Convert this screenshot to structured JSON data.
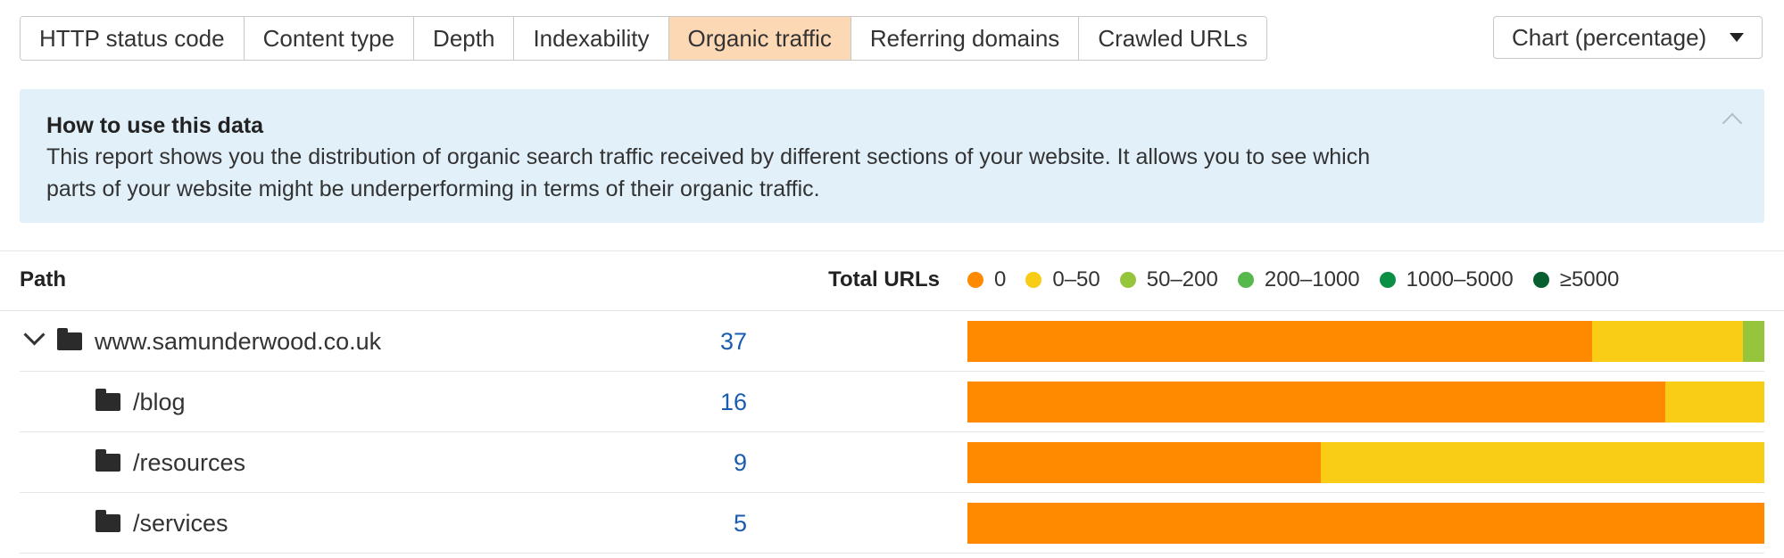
{
  "tabs": [
    {
      "label": "HTTP status code",
      "active": false
    },
    {
      "label": "Content type",
      "active": false
    },
    {
      "label": "Depth",
      "active": false
    },
    {
      "label": "Indexability",
      "active": false
    },
    {
      "label": "Organic traffic",
      "active": true
    },
    {
      "label": "Referring domains",
      "active": false
    },
    {
      "label": "Crawled URLs",
      "active": false
    }
  ],
  "view_select": {
    "value": "Chart (percentage)"
  },
  "info": {
    "title": "How to use this data",
    "text_line1": "This report shows you the distribution of organic search traffic received by different sections of your website. It allows you to see which",
    "text_line2": "parts of your website might be underperforming in terms of their organic traffic."
  },
  "table": {
    "col_path": "Path",
    "col_total": "Total URLs"
  },
  "legend": [
    {
      "label": "0",
      "color": "#ff8a00"
    },
    {
      "label": "0–50",
      "color": "#f9cc15"
    },
    {
      "label": "50–200",
      "color": "#96c43c"
    },
    {
      "label": "200–1000",
      "color": "#57b84e"
    },
    {
      "label": "1000–5000",
      "color": "#0a8f45"
    },
    {
      "label": "≥5000",
      "color": "#075e2e"
    }
  ],
  "rows": [
    {
      "path": "www.samunderwood.co.uk",
      "total": "37",
      "expandable": true,
      "level": 0,
      "distribution": [
        0.784,
        0.189,
        0.027,
        0,
        0,
        0
      ]
    },
    {
      "path": "/blog",
      "total": "16",
      "expandable": false,
      "level": 1,
      "distribution": [
        0.876,
        0.124,
        0,
        0,
        0,
        0
      ]
    },
    {
      "path": "/resources",
      "total": "9",
      "expandable": false,
      "level": 1,
      "distribution": [
        0.444,
        0.556,
        0,
        0,
        0,
        0
      ]
    },
    {
      "path": "/services",
      "total": "5",
      "expandable": false,
      "level": 1,
      "distribution": [
        1.0,
        0,
        0,
        0,
        0,
        0
      ]
    }
  ]
}
